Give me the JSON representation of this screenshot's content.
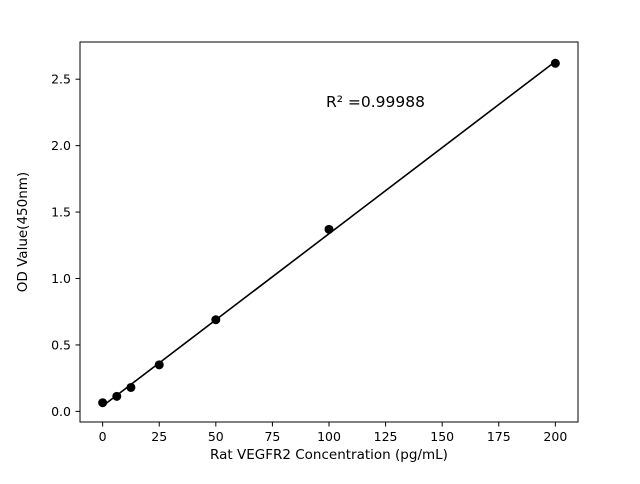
{
  "chart_data": {
    "type": "scatter",
    "title": "",
    "xlabel": "Rat VEGFR2 Concentration (pg/mL)",
    "ylabel": "OD Value(450nm)",
    "x": [
      0,
      6.25,
      12.5,
      25,
      50,
      100,
      200
    ],
    "y": [
      0.065,
      0.113,
      0.18,
      0.35,
      0.69,
      1.37,
      2.62
    ],
    "xlim": [
      -10,
      210
    ],
    "ylim": [
      -0.08,
      2.78
    ],
    "xticks": [
      0,
      25,
      50,
      75,
      100,
      125,
      150,
      175,
      200
    ],
    "yticks": [
      0.0,
      0.5,
      1.0,
      1.5,
      2.0,
      2.5
    ],
    "annotation": "R² =0.99988",
    "r_squared": 0.99988,
    "fit_type": "linear",
    "legend": "none",
    "grid": false,
    "marker_color": "#000000",
    "line_color": "#000000",
    "axis_color": "#000000",
    "background": "#ffffff"
  }
}
